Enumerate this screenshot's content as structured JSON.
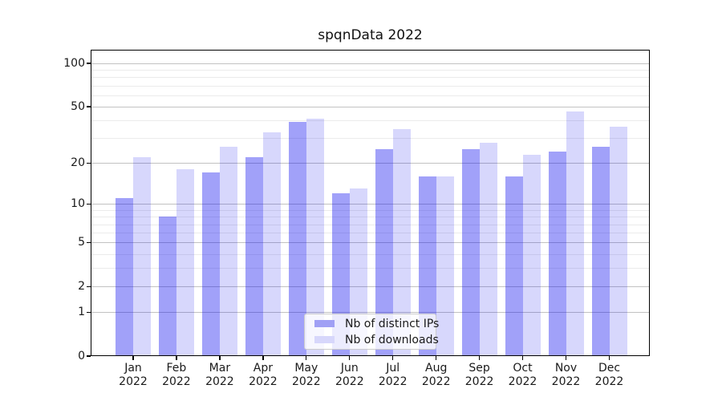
{
  "title": "spqnData 2022",
  "chart_data": {
    "type": "bar",
    "title": "spqnData 2022",
    "x_categories": [
      "Jan",
      "Feb",
      "Mar",
      "Apr",
      "May",
      "Jun",
      "Jul",
      "Aug",
      "Sep",
      "Oct",
      "Nov",
      "Dec"
    ],
    "x_year_suffix": "2022",
    "series": [
      {
        "name": "Nb of distinct IPs",
        "color_hex": "#a0a0f5",
        "fill_rgba": "rgba(8,8,238,0.38)",
        "values": [
          11,
          8,
          17,
          22,
          39,
          12,
          25,
          16,
          25,
          16,
          24,
          26
        ]
      },
      {
        "name": "Nb of downloads",
        "color_hex": "#d7d7fb",
        "fill_rgba": "rgba(8,8,238,0.16)",
        "values": [
          22,
          18,
          26,
          33,
          41,
          13,
          35,
          16,
          28,
          23,
          46,
          36
        ]
      }
    ],
    "yscale": "log1p",
    "ylim": [
      0,
      124
    ],
    "yticks": [
      0,
      1,
      2,
      5,
      10,
      20,
      50,
      100
    ],
    "yticks_minor": [
      3,
      4,
      6,
      7,
      8,
      9,
      30,
      40,
      60,
      70,
      80,
      90
    ],
    "grid": true,
    "legend_position": "lower center",
    "colors": {
      "grid_major": "#c2c2c2",
      "grid_minor": "#ebebeb",
      "axis": "#000000",
      "text": "#1a1a1a"
    }
  }
}
